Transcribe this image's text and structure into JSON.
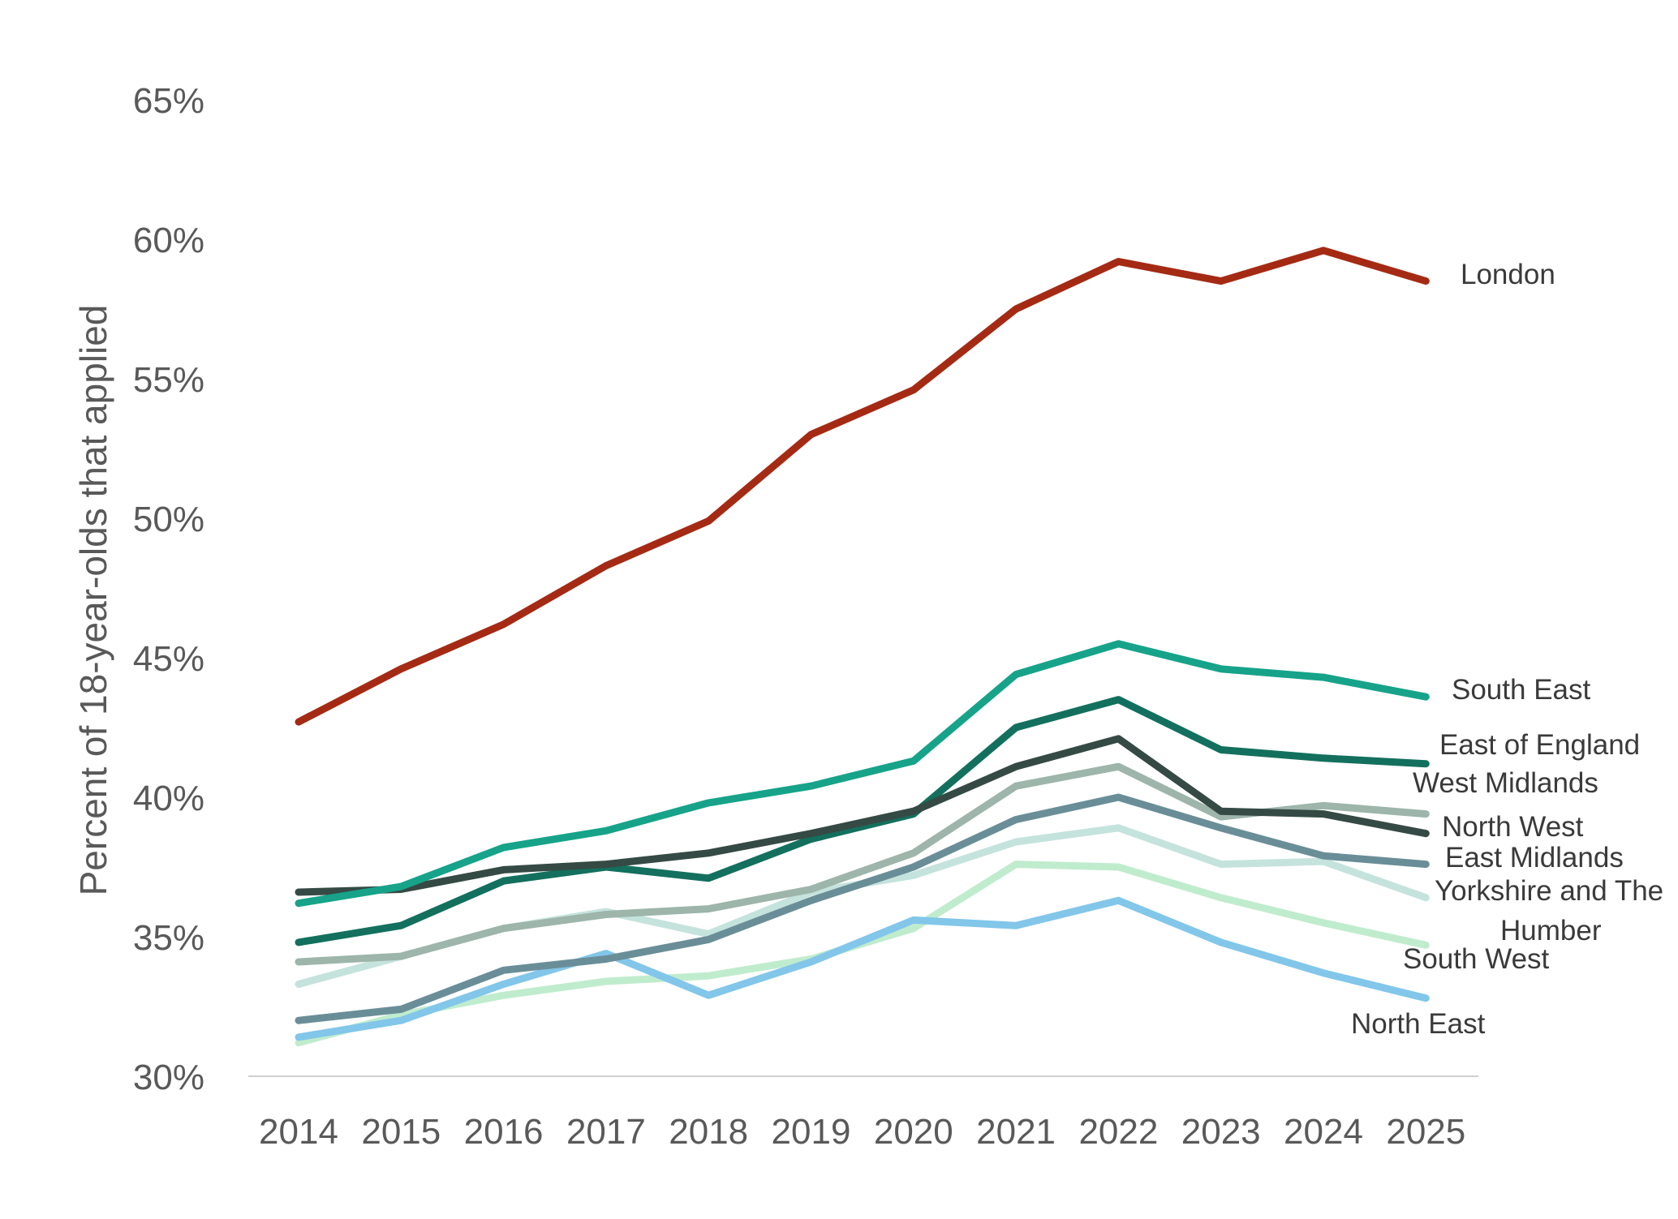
{
  "chart_data": {
    "type": "line",
    "title": "",
    "xlabel": "",
    "ylabel": "Percent of 18-year-olds that applied",
    "x": [
      "2014",
      "2015",
      "2016",
      "2017",
      "2018",
      "2019",
      "2020",
      "2021",
      "2022",
      "2023",
      "2024",
      "2025"
    ],
    "y_ticks": [
      "30%",
      "35%",
      "40%",
      "45%",
      "50%",
      "55%",
      "60%",
      "65%"
    ],
    "ylim": [
      30,
      65
    ],
    "grid": false,
    "legend": "direct labels at line ends",
    "series": [
      {
        "name": "London",
        "label_lines": [
          "London"
        ],
        "color": "#a52a14",
        "values": [
          42.7,
          44.6,
          46.2,
          48.3,
          49.9,
          53.0,
          54.6,
          57.5,
          59.2,
          58.5,
          59.6,
          58.5
        ]
      },
      {
        "name": "South East",
        "label_lines": [
          "South East"
        ],
        "color": "#16a38a",
        "values": [
          36.2,
          36.8,
          38.2,
          38.8,
          39.8,
          40.4,
          41.3,
          44.4,
          45.5,
          44.6,
          44.3,
          43.6
        ]
      },
      {
        "name": "East of England",
        "label_lines": [
          "East of England"
        ],
        "color": "#13705e",
        "values": [
          34.8,
          35.4,
          37.0,
          37.5,
          37.1,
          38.5,
          39.4,
          42.5,
          43.5,
          41.7,
          41.4,
          41.2
        ]
      },
      {
        "name": "West Midlands",
        "label_lines": [
          "West Midlands"
        ],
        "color": "#9db5aa",
        "values": [
          34.1,
          34.3,
          35.3,
          35.8,
          36.0,
          36.7,
          38.0,
          40.4,
          41.1,
          39.3,
          39.7,
          39.4
        ]
      },
      {
        "name": "North West",
        "label_lines": [
          "North West"
        ],
        "color": "#354a44",
        "values": [
          36.6,
          36.7,
          37.4,
          37.6,
          38.0,
          38.7,
          39.5,
          41.1,
          42.1,
          39.5,
          39.4,
          38.7
        ]
      },
      {
        "name": "East Midlands",
        "label_lines": [
          "East Midlands"
        ],
        "color": "#6a8e98",
        "values": [
          32.0,
          32.4,
          33.8,
          34.2,
          34.9,
          36.3,
          37.5,
          39.2,
          40.0,
          38.9,
          37.9,
          37.6
        ]
      },
      {
        "name": "Yorkshire and The Humber",
        "label_lines": [
          "Yorkshire and The",
          "Humber"
        ],
        "color": "#c5e3dd",
        "values": [
          33.3,
          34.3,
          35.3,
          35.9,
          35.1,
          36.6,
          37.2,
          38.4,
          38.9,
          37.6,
          37.7,
          36.4
        ]
      },
      {
        "name": "South West",
        "label_lines": [
          "South West"
        ],
        "color": "#c0ecce",
        "values": [
          31.2,
          32.2,
          32.9,
          33.4,
          33.6,
          34.2,
          35.3,
          37.6,
          37.5,
          36.4,
          35.5,
          34.7
        ]
      },
      {
        "name": "North East",
        "label_lines": [
          "North East"
        ],
        "color": "#82c6ea",
        "values": [
          31.4,
          32.0,
          33.3,
          34.4,
          32.9,
          34.1,
          35.6,
          35.4,
          36.3,
          34.8,
          33.7,
          32.8
        ]
      }
    ]
  }
}
